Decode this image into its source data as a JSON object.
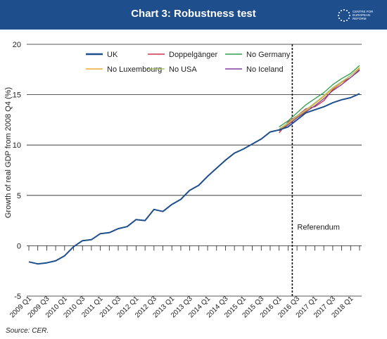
{
  "header": {
    "title": "Chart 3: Robustness test",
    "logo_text": "CENTRE FOR EUROPEAN REFORM",
    "banner_color": "#1f4e8c"
  },
  "footer": {
    "source": "Source: CER."
  },
  "chart_data": {
    "type": "line",
    "title": "Chart 3: Robustness test",
    "ylabel": "Growth of real GDP from 2008 Q4 (%)",
    "xlabel": "",
    "ylim": [
      -5,
      20
    ],
    "yticks": [
      -5,
      0,
      5,
      10,
      15,
      20
    ],
    "grid": "horizontal",
    "legend": "top",
    "categories": [
      "2009 Q1",
      "2009 Q2",
      "2009 Q3",
      "2009 Q4",
      "2010 Q1",
      "2010 Q2",
      "2010 Q3",
      "2010 Q4",
      "2011 Q1",
      "2011 Q2",
      "2011 Q3",
      "2011 Q4",
      "2012 Q1",
      "2012 Q2",
      "2012 Q3",
      "2012 Q4",
      "2013 Q1",
      "2013 Q2",
      "2013 Q3",
      "2013 Q4",
      "2014 Q1",
      "2014 Q2",
      "2014 Q3",
      "2014 Q4",
      "2015 Q1",
      "2015 Q2",
      "2015 Q3",
      "2015 Q4",
      "2016 Q1",
      "2016 Q2",
      "2016 Q3",
      "2016 Q4",
      "2017 Q1",
      "2017 Q2",
      "2017 Q3",
      "2017 Q4",
      "2018 Q1",
      "2018 Q2"
    ],
    "tick_labels": [
      "2009 Q1",
      "2009 Q3",
      "2010 Q1",
      "2010 Q3",
      "2011 Q1",
      "2011 Q3",
      "2012 Q1",
      "2012 Q3",
      "2013 Q1",
      "2013 Q3",
      "2014 Q1",
      "2014 Q3",
      "2015 Q1",
      "2015 Q3",
      "2016 Q1",
      "2016 Q3",
      "2017 Q1",
      "2017 Q3",
      "2018 Q1"
    ],
    "annotation": {
      "label": "Referendum",
      "at": "2016 Q2"
    },
    "series": [
      {
        "name": "UK",
        "color": "#1f4e8c",
        "values": [
          -1.6,
          -1.8,
          -1.7,
          -1.5,
          -1.0,
          -0.1,
          0.5,
          0.6,
          1.2,
          1.3,
          1.7,
          1.9,
          2.6,
          2.5,
          3.6,
          3.4,
          4.1,
          4.6,
          5.5,
          6.0,
          6.9,
          7.7,
          8.5,
          9.2,
          9.6,
          10.1,
          10.6,
          11.3,
          11.5,
          11.8,
          12.5,
          13.2,
          13.5,
          13.8,
          14.2,
          14.5,
          14.7,
          15.1
        ]
      },
      {
        "name": "Doppelgänger",
        "color": "#d0304f",
        "values": [
          null,
          null,
          null,
          null,
          null,
          null,
          null,
          null,
          null,
          null,
          null,
          null,
          null,
          null,
          null,
          null,
          null,
          null,
          null,
          null,
          null,
          null,
          null,
          null,
          null,
          null,
          null,
          null,
          11.2,
          12.3,
          12.9,
          13.6,
          13.8,
          14.4,
          15.5,
          16.2,
          16.7,
          17.5
        ]
      },
      {
        "name": "No Germany",
        "color": "#2f9e4f",
        "values": [
          null,
          null,
          null,
          null,
          null,
          null,
          null,
          null,
          null,
          null,
          null,
          null,
          null,
          null,
          null,
          null,
          null,
          null,
          null,
          null,
          null,
          null,
          null,
          null,
          null,
          null,
          null,
          null,
          11.8,
          12.4,
          13.2,
          14.0,
          14.6,
          15.2,
          16.0,
          16.6,
          17.1,
          17.9
        ]
      },
      {
        "name": "No Luxembourg",
        "color": "#f0a830",
        "values": [
          null,
          null,
          null,
          null,
          null,
          null,
          null,
          null,
          null,
          null,
          null,
          null,
          null,
          null,
          null,
          null,
          null,
          null,
          null,
          null,
          null,
          null,
          null,
          null,
          null,
          null,
          null,
          null,
          11.5,
          12.1,
          12.8,
          13.4,
          14.1,
          14.8,
          15.6,
          16.2,
          16.9,
          17.7
        ]
      },
      {
        "name": "No USA",
        "color": "#a9c06b",
        "values": [
          null,
          null,
          null,
          null,
          null,
          null,
          null,
          null,
          null,
          null,
          null,
          null,
          null,
          null,
          null,
          null,
          null,
          null,
          null,
          null,
          null,
          null,
          null,
          null,
          null,
          null,
          null,
          null,
          11.6,
          12.2,
          12.9,
          13.5,
          14.2,
          14.9,
          15.7,
          16.3,
          16.9,
          17.6
        ]
      },
      {
        "name": "No Iceland",
        "color": "#7a3f9a",
        "values": [
          null,
          null,
          null,
          null,
          null,
          null,
          null,
          null,
          null,
          null,
          null,
          null,
          null,
          null,
          null,
          null,
          null,
          null,
          null,
          null,
          null,
          null,
          null,
          null,
          null,
          null,
          null,
          null,
          11.4,
          12.0,
          12.7,
          13.3,
          13.9,
          14.6,
          15.4,
          16.0,
          16.7,
          17.4
        ]
      }
    ]
  }
}
